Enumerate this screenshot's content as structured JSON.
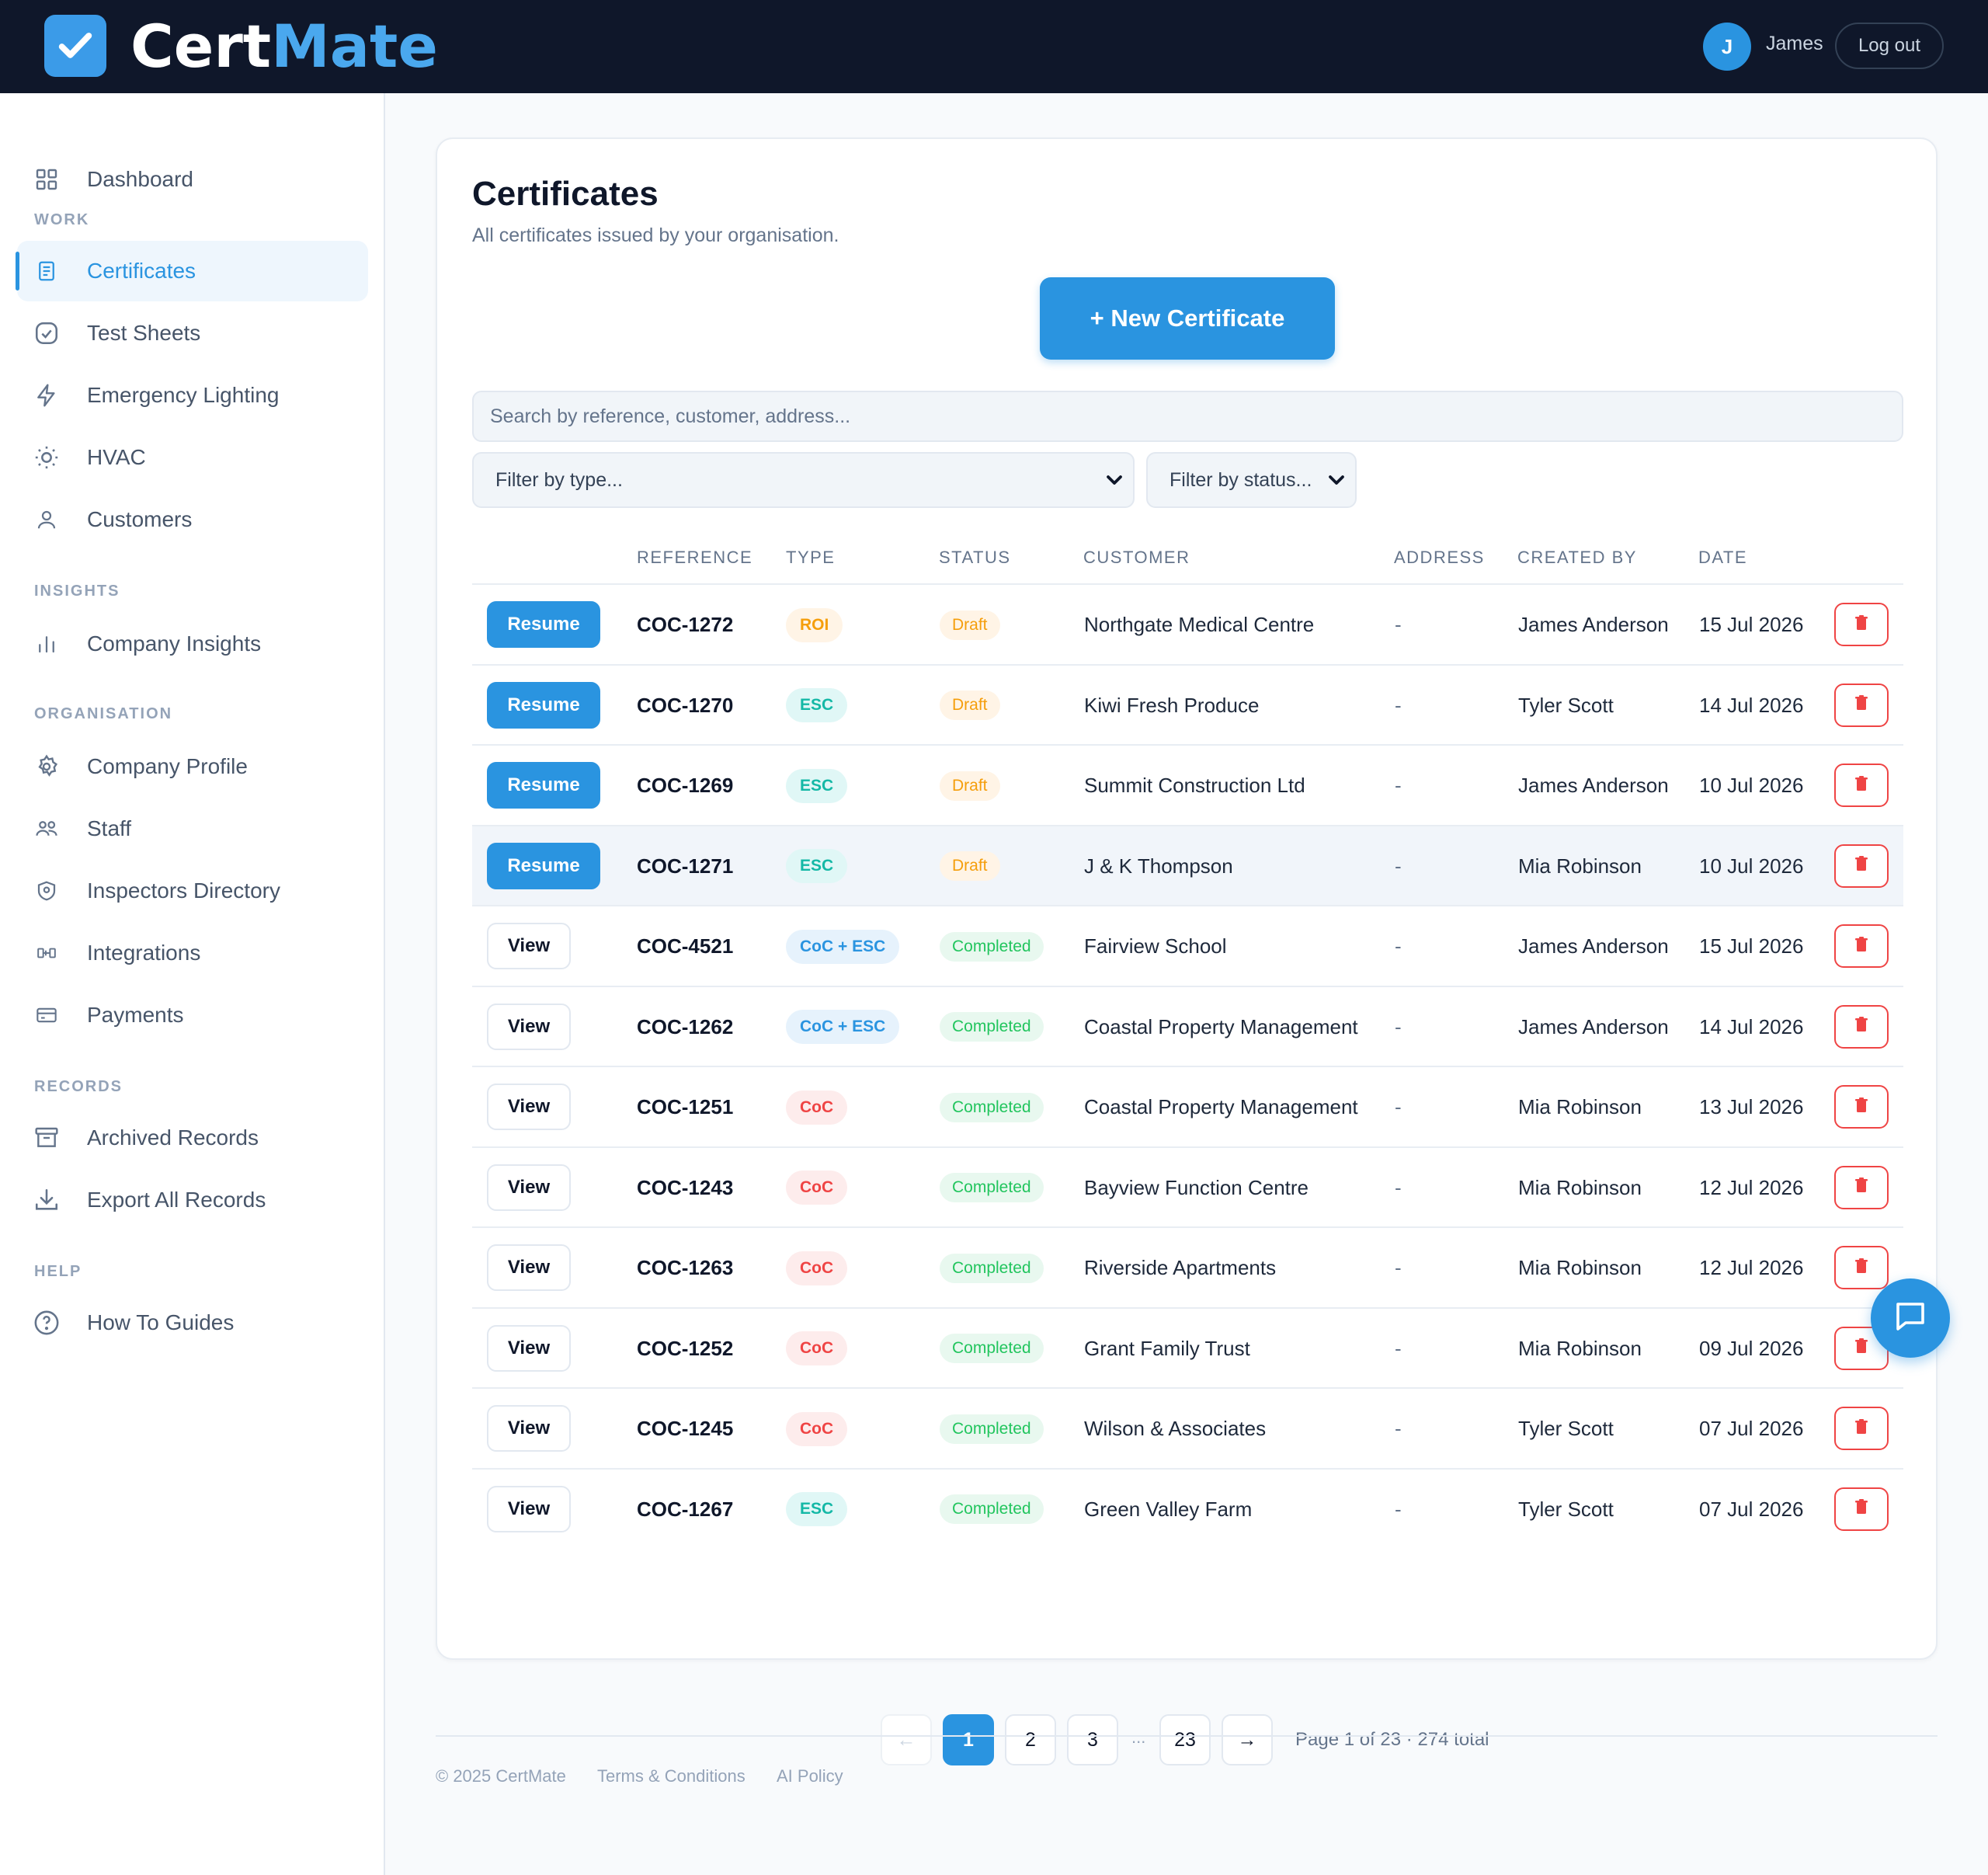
{
  "header": {
    "brand_first": "Cert",
    "brand_second": "Mate",
    "user_initial": "J",
    "user_name": "James",
    "logout_label": "Log out"
  },
  "sidebar": {
    "dashboard": "Dashboard",
    "sections": {
      "work": "WORK",
      "insights": "INSIGHTS",
      "organisation": "ORGANISATION",
      "records": "RECORDS",
      "help": "HELP"
    },
    "items": {
      "certificates": "Certificates",
      "test_sheets": "Test Sheets",
      "emergency_lighting": "Emergency Lighting",
      "hvac": "HVAC",
      "customers": "Customers",
      "company_insights": "Company Insights",
      "company_profile": "Company Profile",
      "staff": "Staff",
      "inspectors_directory": "Inspectors Directory",
      "integrations": "Integrations",
      "payments": "Payments",
      "archived_records": "Archived Records",
      "export_all_records": "Export All Records",
      "how_to_guides": "How To Guides"
    }
  },
  "main": {
    "title": "Certificates",
    "subtitle": "All certificates issued by your organisation.",
    "new_button": "+ New Certificate",
    "search_placeholder": "Search by reference, customer, address...",
    "filter_type": "Filter by type...",
    "filter_status": "Filter by status...",
    "columns": {
      "reference": "REFERENCE",
      "type": "TYPE",
      "status": "STATUS",
      "customer": "CUSTOMER",
      "address": "ADDRESS",
      "created_by": "CREATED BY",
      "date": "DATE"
    },
    "rows": [
      {
        "action": "Resume",
        "ref": "COC-1272",
        "type": "ROI",
        "status": "Draft",
        "customer": "Northgate Medical Centre",
        "address": "-",
        "created_by": "James Anderson",
        "date": "15 Jul 2026"
      },
      {
        "action": "Resume",
        "ref": "COC-1270",
        "type": "ESC",
        "status": "Draft",
        "customer": "Kiwi Fresh Produce",
        "address": "-",
        "created_by": "Tyler Scott",
        "date": "14 Jul 2026"
      },
      {
        "action": "Resume",
        "ref": "COC-1269",
        "type": "ESC",
        "status": "Draft",
        "customer": "Summit Construction Ltd",
        "address": "-",
        "created_by": "James Anderson",
        "date": "10 Jul 2026"
      },
      {
        "action": "Resume",
        "ref": "COC-1271",
        "type": "ESC",
        "status": "Draft",
        "customer": "J & K Thompson",
        "address": "-",
        "created_by": "Mia Robinson",
        "date": "10 Jul 2026"
      },
      {
        "action": "View",
        "ref": "COC-4521",
        "type": "CoC + ESC",
        "status": "Completed",
        "customer": "Fairview School",
        "address": "-",
        "created_by": "James Anderson",
        "date": "15 Jul 2026"
      },
      {
        "action": "View",
        "ref": "COC-1262",
        "type": "CoC + ESC",
        "status": "Completed",
        "customer": "Coastal Property Management",
        "address": "-",
        "created_by": "James Anderson",
        "date": "14 Jul 2026"
      },
      {
        "action": "View",
        "ref": "COC-1251",
        "type": "CoC",
        "status": "Completed",
        "customer": "Coastal Property Management",
        "address": "-",
        "created_by": "Mia Robinson",
        "date": "13 Jul 2026"
      },
      {
        "action": "View",
        "ref": "COC-1243",
        "type": "CoC",
        "status": "Completed",
        "customer": "Bayview Function Centre",
        "address": "-",
        "created_by": "Mia Robinson",
        "date": "12 Jul 2026"
      },
      {
        "action": "View",
        "ref": "COC-1263",
        "type": "CoC",
        "status": "Completed",
        "customer": "Riverside Apartments",
        "address": "-",
        "created_by": "Mia Robinson",
        "date": "12 Jul 2026"
      },
      {
        "action": "View",
        "ref": "COC-1252",
        "type": "CoC",
        "status": "Completed",
        "customer": "Grant Family Trust",
        "address": "-",
        "created_by": "Mia Robinson",
        "date": "09 Jul 2026"
      },
      {
        "action": "View",
        "ref": "COC-1245",
        "type": "CoC",
        "status": "Completed",
        "customer": "Wilson & Associates",
        "address": "-",
        "created_by": "Tyler Scott",
        "date": "07 Jul 2026"
      },
      {
        "action": "View",
        "ref": "COC-1267",
        "type": "ESC",
        "status": "Completed",
        "customer": "Green Valley Farm",
        "address": "-",
        "created_by": "Tyler Scott",
        "date": "07 Jul 2026"
      }
    ],
    "pagination": {
      "prev": "←",
      "pages": [
        "1",
        "2",
        "3"
      ],
      "dots": "...",
      "last": "23",
      "next": "→",
      "info": "Page 1 of 23 · 274 total",
      "current_page": 1
    }
  },
  "footer": {
    "copyright": "© 2025 CertMate",
    "terms": "Terms & Conditions",
    "ai_policy": "AI Policy"
  },
  "colors": {
    "accent": "#2a94e0",
    "header_bg": "#0f172a",
    "danger": "#ef4444",
    "success": "#22c55e",
    "warning": "#f59e0b"
  }
}
